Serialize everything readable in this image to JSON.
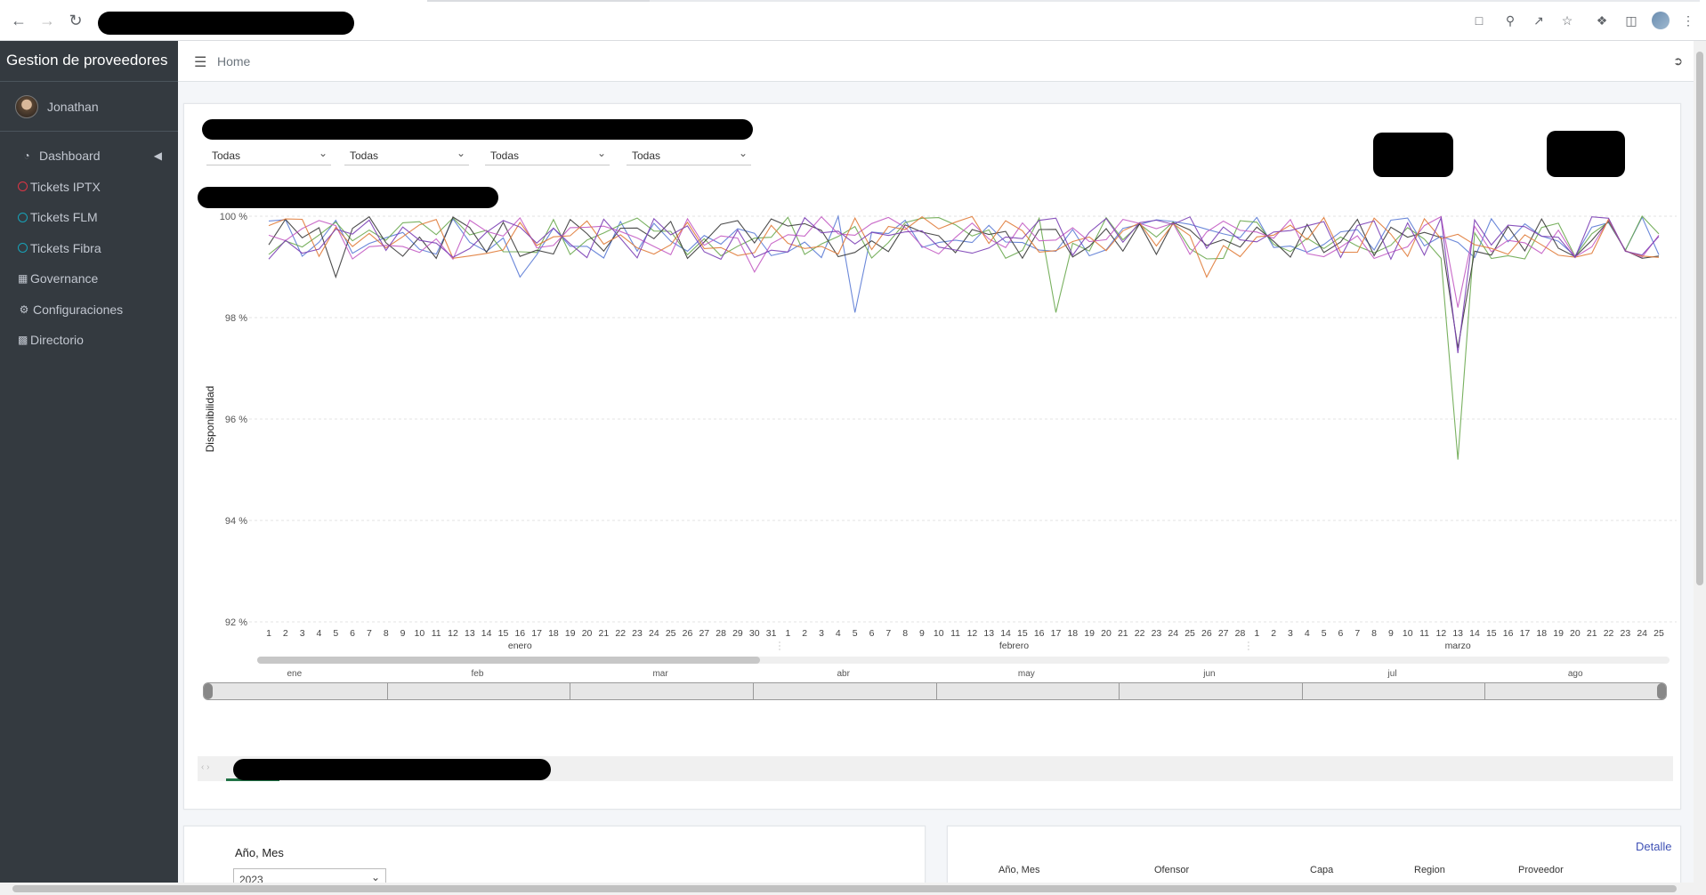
{
  "browser": {
    "icons": [
      "back-icon",
      "forward-icon",
      "reload-icon",
      "translate-icon",
      "zoom-icon",
      "share-icon",
      "star-icon",
      "extensions-icon",
      "side-panel-icon",
      "profile-icon",
      "menu-icon"
    ]
  },
  "sidebar": {
    "brand": "Gestion de proveedores",
    "user": "Jonathan",
    "items": [
      {
        "label": "Dashboard",
        "icon": "tachometer-icon"
      },
      {
        "label": "Tickets IPTX",
        "icon": "circle-icon",
        "color": "#dc3545"
      },
      {
        "label": "Tickets FLM",
        "icon": "circle-icon",
        "color": "#17a2b8"
      },
      {
        "label": "Tickets Fibra",
        "icon": "circle-icon",
        "color": "#17a2b8"
      },
      {
        "label": "Governance",
        "icon": "calendar-icon"
      },
      {
        "label": "Configuraciones",
        "icon": "cogs-icon"
      },
      {
        "label": "Directorio",
        "icon": "address-book-icon"
      }
    ]
  },
  "header": {
    "breadcrumb": "Home"
  },
  "filters": [
    "Todas",
    "Todas",
    "Todas",
    "Todas"
  ],
  "chart_data": {
    "type": "line",
    "title": "",
    "xlabel": "",
    "ylabel": "Disponibilidad",
    "ylim": [
      92,
      100
    ],
    "yticks": [
      "100 %",
      "98 %",
      "96 %",
      "94 %",
      "92 %"
    ],
    "month_groups": [
      {
        "name": "enero",
        "days": 31
      },
      {
        "name": "febrero",
        "days": 28
      },
      {
        "name": "marzo",
        "days": 25
      }
    ],
    "series": [
      {
        "color": "#5b7bd5",
        "min_points": [
          {
            "x": "abr-5",
            "y": 98.1
          },
          {
            "x": "ene-16",
            "y": 98.8
          }
        ]
      },
      {
        "color": "#6aa84f",
        "min_points": [
          {
            "x": "mar-13",
            "y": 95.2
          },
          {
            "x": "feb-17",
            "y": 98.1
          }
        ]
      },
      {
        "color": "#3a3a3a",
        "min_points": [
          {
            "x": "mar-13",
            "y": 97.4
          },
          {
            "x": "ene-5",
            "y": 98.8
          }
        ]
      },
      {
        "color": "#c35bc3",
        "min_points": [
          {
            "x": "mar-13",
            "y": 98.2
          },
          {
            "x": "ene-30",
            "y": 98.9
          }
        ]
      },
      {
        "color": "#e07b39",
        "min_points": [
          {
            "x": "feb-26",
            "y": 98.8
          }
        ]
      },
      {
        "color": "#7b3fb5",
        "min_points": [
          {
            "x": "mar-13",
            "y": 97.3
          }
        ]
      }
    ]
  },
  "timeline": {
    "months": [
      "ene",
      "feb",
      "mar",
      "abr",
      "may",
      "jun",
      "jul",
      "ago"
    ]
  },
  "bottom_left": {
    "label": "Año, Mes",
    "select_value": "2023"
  },
  "bottom_right": {
    "link": "Detalle",
    "columns": [
      "Año, Mes",
      "Ofensor",
      "Capa",
      "Region",
      "Proveedor"
    ]
  }
}
